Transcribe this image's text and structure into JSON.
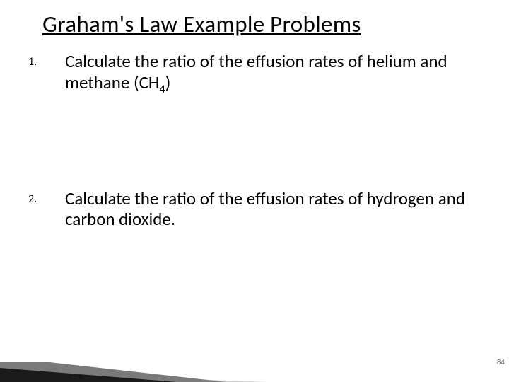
{
  "title": "Graham's Law Example Problems",
  "items": [
    {
      "number": "1.",
      "text_html": "Calculate the ratio of the effusion rates of helium and methane (CH<sub>4</sub>)"
    },
    {
      "number": "2.",
      "text_html": "Calculate the ratio of the effusion rates of hydrogen and carbon dioxide."
    }
  ],
  "page_number": "84",
  "decoration": {
    "dark": "#1a1a1a",
    "gray": "#7a7a7a",
    "light": "#d0d0d0"
  }
}
